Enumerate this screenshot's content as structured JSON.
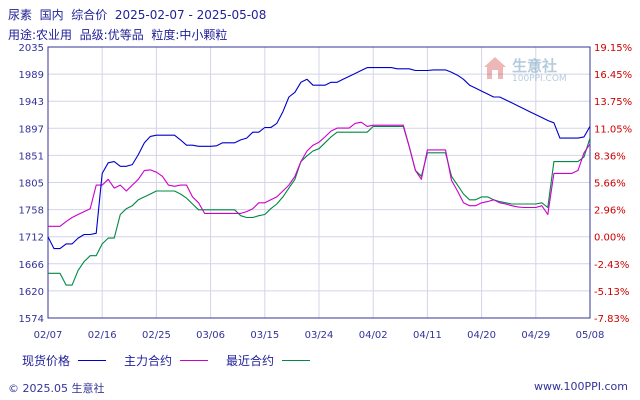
{
  "header": {
    "title": "尿素  国内  综合价  2025-02-07 - 2025-05-08",
    "spec": "用途:农业用  品级:优等品  粒度:中小颗粒"
  },
  "watermark": {
    "name": "生意社",
    "url": "100PPI.COM"
  },
  "legend": {
    "items": [
      {
        "label": "现货价格",
        "color": "#0000cc"
      },
      {
        "label": "主力合约",
        "color": "#cc00cc"
      },
      {
        "label": "最近合约",
        "color": "#008844"
      }
    ]
  },
  "footer": {
    "copyright": "© 2025.05 生意社",
    "site": "www.100PPI.com"
  },
  "colors": {
    "axis": "#333399",
    "grid": "#d4d4e8",
    "right_axis": "#cc0000"
  },
  "chart_data": {
    "type": "line",
    "title": "尿素  国内  综合价  2025-02-07 - 2025-05-08",
    "xlabel": "",
    "ylabel": "",
    "grid": true,
    "legend_position": "bottom",
    "x_tick_labels": [
      "02/07",
      "02/16",
      "02/25",
      "03/06",
      "03/15",
      "03/24",
      "04/02",
      "04/11",
      "04/20",
      "04/29",
      "05/08"
    ],
    "x": [
      "02/07",
      "02/08",
      "02/09",
      "02/10",
      "02/11",
      "02/12",
      "02/13",
      "02/14",
      "02/15",
      "02/16",
      "02/17",
      "02/18",
      "02/19",
      "02/20",
      "02/21",
      "02/22",
      "02/23",
      "02/24",
      "02/25",
      "02/26",
      "02/27",
      "02/28",
      "03/01",
      "03/02",
      "03/03",
      "03/04",
      "03/05",
      "03/06",
      "03/07",
      "03/08",
      "03/09",
      "03/10",
      "03/11",
      "03/12",
      "03/13",
      "03/14",
      "03/15",
      "03/16",
      "03/17",
      "03/18",
      "03/19",
      "03/20",
      "03/21",
      "03/22",
      "03/23",
      "03/24",
      "03/25",
      "03/26",
      "03/27",
      "03/28",
      "03/29",
      "03/30",
      "03/31",
      "04/01",
      "04/02",
      "04/03",
      "04/04",
      "04/05",
      "04/06",
      "04/07",
      "04/08",
      "04/09",
      "04/10",
      "04/11",
      "04/12",
      "04/13",
      "04/14",
      "04/15",
      "04/16",
      "04/17",
      "04/18",
      "04/19",
      "04/20",
      "04/21",
      "04/22",
      "04/23",
      "04/24",
      "04/25",
      "04/26",
      "04/27",
      "04/28",
      "04/29",
      "04/30",
      "05/01",
      "05/02",
      "05/03",
      "05/04",
      "05/05",
      "05/06",
      "05/07",
      "05/08"
    ],
    "y_left": {
      "ticks": [
        2035,
        1989,
        1943,
        1897,
        1851,
        1805,
        1758,
        1712,
        1666,
        1620,
        1574
      ],
      "range": [
        1574,
        2035
      ]
    },
    "y_right": {
      "ticks": [
        "19.15%",
        "16.45%",
        "13.75%",
        "11.05%",
        "8.36%",
        "5.66%",
        "2.96%",
        "0.00%",
        "-2.43%",
        "-5.13%",
        "-7.83%"
      ],
      "range": [
        -7.83,
        19.15
      ]
    },
    "series": [
      {
        "name": "现货价格",
        "color": "#0000cc",
        "values": [
          1712,
          1692,
          1692,
          1700,
          1700,
          1710,
          1716,
          1716,
          1718,
          1820,
          1838,
          1840,
          1832,
          1832,
          1835,
          1852,
          1872,
          1883,
          1885,
          1885,
          1885,
          1885,
          1877,
          1868,
          1868,
          1866,
          1866,
          1866,
          1867,
          1872,
          1872,
          1872,
          1877,
          1880,
          1890,
          1890,
          1898,
          1898,
          1905,
          1925,
          1950,
          1958,
          1975,
          1980,
          1970,
          1970,
          1970,
          1975,
          1975,
          1980,
          1985,
          1990,
          1995,
          2000,
          2000,
          2000,
          2000,
          2000,
          1998,
          1998,
          1998,
          1995,
          1995,
          1995,
          1996,
          1996,
          1996,
          1992,
          1987,
          1980,
          1970,
          1965,
          1960,
          1955,
          1950,
          1950,
          1945,
          1940,
          1935,
          1930,
          1925,
          1920,
          1915,
          1910,
          1906,
          1880,
          1880,
          1880,
          1880,
          1882,
          1900
        ]
      },
      {
        "name": "主力合约",
        "color": "#cc00cc",
        "values": [
          1730,
          1730,
          1730,
          1738,
          1745,
          1750,
          1755,
          1760,
          1800,
          1800,
          1810,
          1795,
          1800,
          1790,
          1800,
          1810,
          1825,
          1826,
          1822,
          1815,
          1800,
          1798,
          1800,
          1800,
          1780,
          1770,
          1752,
          1752,
          1752,
          1752,
          1752,
          1752,
          1752,
          1755,
          1760,
          1770,
          1770,
          1775,
          1780,
          1790,
          1800,
          1815,
          1840,
          1858,
          1868,
          1873,
          1882,
          1892,
          1897,
          1897,
          1897,
          1905,
          1907,
          1900,
          1902,
          1902,
          1902,
          1902,
          1902,
          1902,
          1865,
          1825,
          1810,
          1860,
          1860,
          1860,
          1860,
          1808,
          1790,
          1770,
          1765,
          1765,
          1770,
          1772,
          1775,
          1770,
          1768,
          1765,
          1763,
          1762,
          1762,
          1762,
          1765,
          1750,
          1820,
          1820,
          1820,
          1820,
          1825,
          1855,
          1870
        ]
      },
      {
        "name": "最近合约",
        "color": "#008844",
        "values": [
          1650,
          1650,
          1650,
          1630,
          1630,
          1655,
          1670,
          1680,
          1680,
          1700,
          1710,
          1710,
          1750,
          1760,
          1765,
          1775,
          1780,
          1785,
          1790,
          1790,
          1790,
          1790,
          1785,
          1778,
          1768,
          1758,
          1758,
          1758,
          1758,
          1758,
          1758,
          1758,
          1748,
          1745,
          1745,
          1748,
          1750,
          1760,
          1768,
          1780,
          1795,
          1810,
          1840,
          1850,
          1858,
          1862,
          1872,
          1882,
          1890,
          1890,
          1890,
          1890,
          1890,
          1890,
          1900,
          1900,
          1900,
          1900,
          1900,
          1900,
          1865,
          1825,
          1815,
          1855,
          1855,
          1855,
          1855,
          1815,
          1800,
          1785,
          1775,
          1775,
          1780,
          1780,
          1775,
          1772,
          1770,
          1768,
          1768,
          1768,
          1768,
          1768,
          1770,
          1762,
          1840,
          1840,
          1840,
          1840,
          1840,
          1848,
          1880
        ]
      }
    ]
  }
}
